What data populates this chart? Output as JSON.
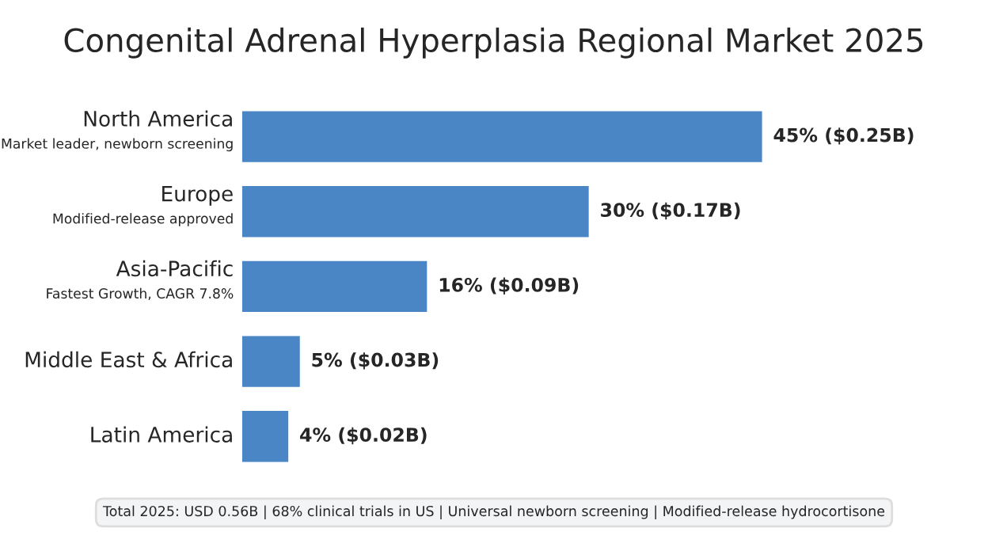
{
  "chart_data": {
    "type": "bar",
    "orientation": "horizontal",
    "title": "Congenital Adrenal Hyperplasia Regional Market 2025",
    "categories": [
      "North America\nMarket leader, newborn screening",
      "Europe\nModified-release approved",
      "Asia-Pacific\nFastest Growth, CAGR 7.8%",
      "Middle East & Africa",
      "Latin America"
    ],
    "values": [
      45,
      30,
      16,
      5,
      4
    ],
    "value_labels": [
      "45% ($0.25B)",
      "30% ($0.17B)",
      "16% ($0.09B)",
      "5% ($0.03B)",
      "4% ($0.02B)"
    ],
    "color": "#4a86c5",
    "annotations": [
      "Total 2025: USD 0.56B | 68% clinical trials in US | Universal newborn screening | Modified-release hydrocortisone"
    ]
  }
}
